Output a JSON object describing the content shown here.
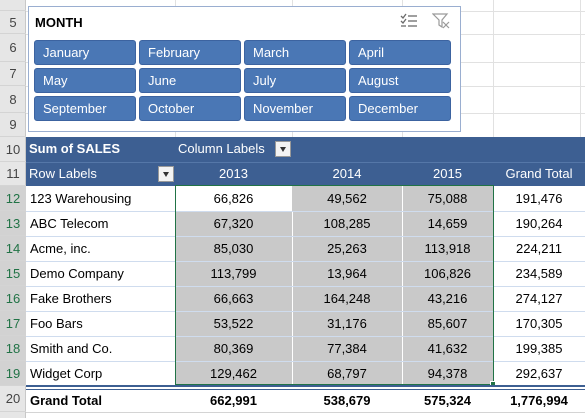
{
  "row_numbers": [
    "5",
    "6",
    "7",
    "8",
    "9",
    "10",
    "11",
    "12",
    "13",
    "14",
    "15",
    "16",
    "17",
    "18",
    "19",
    "20"
  ],
  "slicer": {
    "title": "MONTH",
    "icons": [
      "multi-select-icon",
      "clear-filter-icon"
    ],
    "months": [
      "January",
      "February",
      "March",
      "April",
      "May",
      "June",
      "July",
      "August",
      "September",
      "October",
      "November",
      "December"
    ]
  },
  "pivot": {
    "value_label": "Sum of SALES",
    "column_labels": "Column Labels",
    "row_labels": "Row Labels",
    "years": [
      "2013",
      "2014",
      "2015"
    ],
    "grand_total_label": "Grand Total",
    "rows": [
      {
        "label": "123 Warehousing",
        "values": [
          "66,826",
          "49,562",
          "75,088"
        ],
        "total": "191,476"
      },
      {
        "label": "ABC Telecom",
        "values": [
          "67,320",
          "108,285",
          "14,659"
        ],
        "total": "190,264"
      },
      {
        "label": "Acme, inc.",
        "values": [
          "85,030",
          "25,263",
          "113,918"
        ],
        "total": "224,211"
      },
      {
        "label": "Demo Company",
        "values": [
          "113,799",
          "13,964",
          "106,826"
        ],
        "total": "234,589"
      },
      {
        "label": "Fake Brothers",
        "values": [
          "66,663",
          "164,248",
          "43,216"
        ],
        "total": "274,127"
      },
      {
        "label": "Foo Bars",
        "values": [
          "53,522",
          "31,176",
          "85,607"
        ],
        "total": "170,305"
      },
      {
        "label": "Smith and Co.",
        "values": [
          "80,369",
          "77,384",
          "41,632"
        ],
        "total": "199,385"
      },
      {
        "label": "Widget Corp",
        "values": [
          "129,462",
          "68,797",
          "94,378"
        ],
        "total": "292,637"
      }
    ],
    "grand_total": {
      "label": "Grand Total",
      "values": [
        "662,991",
        "538,679",
        "575,324"
      ],
      "total": "1,776,994"
    }
  },
  "colors": {
    "header_bg": "#3d5f92",
    "slicer_button": "#4a77b5",
    "selection": "#217346",
    "shaded_cells": "#c9c9c9"
  }
}
